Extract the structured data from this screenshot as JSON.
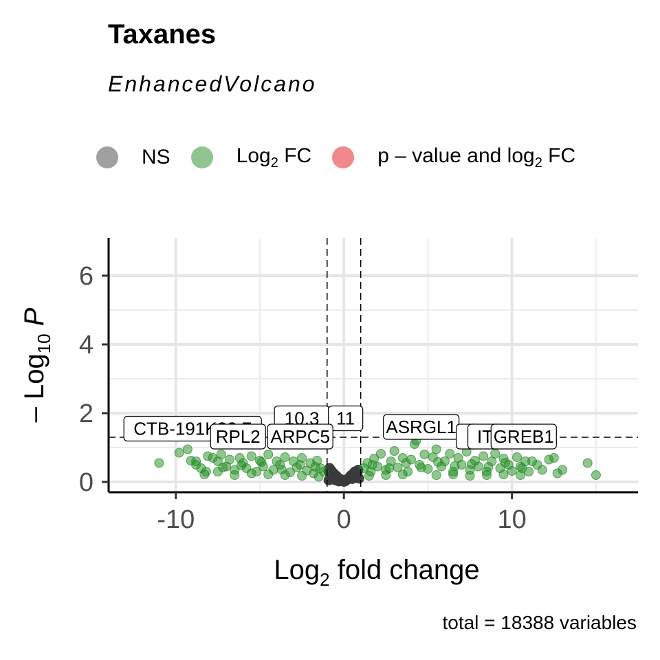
{
  "chart_data": {
    "type": "scatter",
    "title": "Taxanes",
    "subtitle": "EnhancedVolcano",
    "xlabel": "Log2 fold change",
    "ylabel": "-Log10 P",
    "caption": "total = 18388 variables",
    "xlim": [
      -14,
      17.5
    ],
    "ylim": [
      -0.3,
      7.1
    ],
    "x_ticks": [
      -10,
      0,
      10
    ],
    "y_ticks": [
      0,
      2,
      4,
      6
    ],
    "grid": true,
    "legend_position": "top",
    "thresholds": {
      "fc_cutoff": [
        -1,
        1
      ],
      "p_cutoff_neglog10": 1.3
    },
    "legend": [
      {
        "name": "NS",
        "color": "#808080"
      },
      {
        "name": "Log2 FC",
        "color": "#228B22"
      },
      {
        "name": "p - value and log2 FC",
        "color": "#e8262e"
      }
    ],
    "series": [
      {
        "name": "NS",
        "color": "#3a3a3a",
        "points": [
          [
            -0.9,
            0.05
          ],
          [
            -0.8,
            0.12
          ],
          [
            -0.7,
            0.2
          ],
          [
            -0.6,
            0.1
          ],
          [
            -0.5,
            0.05
          ],
          [
            -0.4,
            0.15
          ],
          [
            -0.3,
            0.02
          ],
          [
            -0.2,
            0.08
          ],
          [
            -0.1,
            0.04
          ],
          [
            0,
            0.01
          ],
          [
            0.1,
            0.03
          ],
          [
            0.2,
            0.07
          ],
          [
            0.3,
            0.12
          ],
          [
            0.4,
            0.18
          ],
          [
            0.5,
            0.09
          ],
          [
            0.6,
            0.21
          ],
          [
            0.7,
            0.14
          ],
          [
            0.8,
            0.25
          ],
          [
            0.9,
            0.1
          ],
          [
            -0.9,
            0.3
          ],
          [
            -0.85,
            0.4
          ],
          [
            -0.75,
            0.33
          ],
          [
            0.85,
            0.35
          ],
          [
            0.75,
            0.28
          ],
          [
            -0.65,
            0.27
          ],
          [
            0.65,
            0.3
          ],
          [
            -0.55,
            0.22
          ],
          [
            0.55,
            0.24
          ],
          [
            -0.45,
            0.18
          ],
          [
            0.45,
            0.2
          ],
          [
            -0.35,
            0.12
          ],
          [
            0.35,
            0.14
          ],
          [
            -0.25,
            0.08
          ],
          [
            0.25,
            0.1
          ],
          [
            -0.15,
            0.05
          ],
          [
            0.15,
            0.06
          ]
        ]
      },
      {
        "name": "Log2 FC",
        "color": "#228B22",
        "points": [
          [
            -11,
            0.55
          ],
          [
            -9.8,
            0.85
          ],
          [
            -9.3,
            0.95
          ],
          [
            -9.1,
            0.62
          ],
          [
            -8.8,
            0.5
          ],
          [
            -8.5,
            0.4
          ],
          [
            -8.3,
            0.22
          ],
          [
            -8.1,
            0.75
          ],
          [
            -8.2,
            0.3
          ],
          [
            -7.8,
            0.7
          ],
          [
            -7.5,
            0.6
          ],
          [
            -7.3,
            0.8
          ],
          [
            -7.0,
            0.45
          ],
          [
            -6.8,
            0.65
          ],
          [
            -6.5,
            0.35
          ],
          [
            -6.2,
            0.7
          ],
          [
            -6.0,
            0.55
          ],
          [
            -5.8,
            0.4
          ],
          [
            -5.5,
            0.75
          ],
          [
            -5.2,
            0.3
          ],
          [
            -5.0,
            0.62
          ],
          [
            -4.8,
            0.45
          ],
          [
            -4.5,
            0.8
          ],
          [
            -4.2,
            0.35
          ],
          [
            -4.0,
            0.6
          ],
          [
            -3.8,
            0.5
          ],
          [
            -3.5,
            0.72
          ],
          [
            -3.2,
            0.28
          ],
          [
            -3.0,
            0.6
          ],
          [
            -2.8,
            0.42
          ],
          [
            -2.5,
            0.7
          ],
          [
            -2.2,
            0.33
          ],
          [
            -2.0,
            0.55
          ],
          [
            -1.8,
            0.25
          ],
          [
            -1.6,
            0.62
          ],
          [
            -1.4,
            0.4
          ],
          [
            -1.2,
            0.3
          ],
          [
            1.2,
            0.4
          ],
          [
            1.4,
            0.55
          ],
          [
            1.6,
            0.3
          ],
          [
            1.8,
            0.68
          ],
          [
            2.0,
            0.45
          ],
          [
            2.2,
            0.82
          ],
          [
            2.5,
            0.35
          ],
          [
            2.8,
            0.6
          ],
          [
            3.0,
            0.9
          ],
          [
            3.2,
            0.42
          ],
          [
            3.5,
            0.7
          ],
          [
            3.8,
            0.3
          ],
          [
            4.0,
            0.65
          ],
          [
            4.2,
            1.1
          ],
          [
            4.3,
            1.2
          ],
          [
            4.5,
            0.5
          ],
          [
            4.8,
            0.8
          ],
          [
            5.0,
            0.38
          ],
          [
            5.3,
            0.72
          ],
          [
            5.5,
            0.95
          ],
          [
            5.8,
            0.45
          ],
          [
            6.0,
            0.6
          ],
          [
            6.3,
            0.82
          ],
          [
            6.5,
            0.3
          ],
          [
            6.8,
            0.7
          ],
          [
            7.0,
            0.5
          ],
          [
            7.3,
            0.88
          ],
          [
            7.5,
            0.35
          ],
          [
            7.8,
            0.62
          ],
          [
            8.0,
            0.45
          ],
          [
            8.3,
            0.75
          ],
          [
            8.5,
            0.3
          ],
          [
            8.8,
            0.6
          ],
          [
            9.0,
            0.82
          ],
          [
            9.3,
            0.4
          ],
          [
            9.5,
            0.68
          ],
          [
            9.8,
            0.5
          ],
          [
            10.0,
            0.32
          ],
          [
            10.3,
            0.72
          ],
          [
            10.5,
            0.45
          ],
          [
            10.8,
            0.6
          ],
          [
            11.0,
            0.3
          ],
          [
            11.5,
            0.5
          ],
          [
            11.8,
            0.35
          ],
          [
            12.2,
            0.65
          ],
          [
            12.5,
            0.7
          ],
          [
            12.7,
            0.25
          ],
          [
            13.0,
            0.35
          ],
          [
            14.5,
            0.55
          ],
          [
            15.0,
            0.2
          ],
          [
            -7.5,
            0.3
          ],
          [
            -6.5,
            0.2
          ],
          [
            -5.5,
            0.25
          ],
          [
            -4.5,
            0.22
          ],
          [
            -3.5,
            0.2
          ],
          [
            -2.5,
            0.18
          ],
          [
            -1.5,
            0.15
          ],
          [
            1.5,
            0.18
          ],
          [
            2.5,
            0.2
          ],
          [
            3.5,
            0.22
          ],
          [
            5.5,
            0.2
          ],
          [
            6.5,
            0.22
          ],
          [
            7.5,
            0.18
          ],
          [
            8.5,
            0.2
          ],
          [
            9.5,
            0.22
          ],
          [
            10.5,
            0.2
          ],
          [
            -8.8,
            0.6
          ],
          [
            -7.2,
            0.42
          ],
          [
            -6.1,
            0.48
          ],
          [
            -4.9,
            0.58
          ],
          [
            -3.7,
            0.36
          ],
          [
            -2.6,
            0.5
          ],
          [
            -1.7,
            0.44
          ],
          [
            1.7,
            0.5
          ],
          [
            2.7,
            0.4
          ],
          [
            3.7,
            0.55
          ],
          [
            4.6,
            0.42
          ],
          [
            5.6,
            0.58
          ],
          [
            6.6,
            0.46
          ],
          [
            7.6,
            0.52
          ],
          [
            8.6,
            0.44
          ],
          [
            9.6,
            0.56
          ],
          [
            10.6,
            0.4
          ],
          [
            11.2,
            0.6
          ]
        ]
      },
      {
        "name": "p - value and log2 FC",
        "color": "#e8262e",
        "points": []
      }
    ],
    "gene_labels": [
      {
        "text": "CTB-191K22.7",
        "x": -9.0,
        "y": 1.55
      },
      {
        "text": "10.3",
        "x": -2.5,
        "y": 1.85
      },
      {
        "text": "11",
        "x": 0.1,
        "y": 1.85
      },
      {
        "text": "RPL2",
        "x": -6.3,
        "y": 1.32
      },
      {
        "text": "ARPC5",
        "x": -2.6,
        "y": 1.32
      },
      {
        "text": "ASRGL1",
        "x": 4.6,
        "y": 1.6
      },
      {
        "text": "I",
        "x": 7.4,
        "y": 1.32
      },
      {
        "text": "IT",
        "x": 8.4,
        "y": 1.32
      },
      {
        "text": "GREB1",
        "x": 10.7,
        "y": 1.32
      }
    ]
  }
}
